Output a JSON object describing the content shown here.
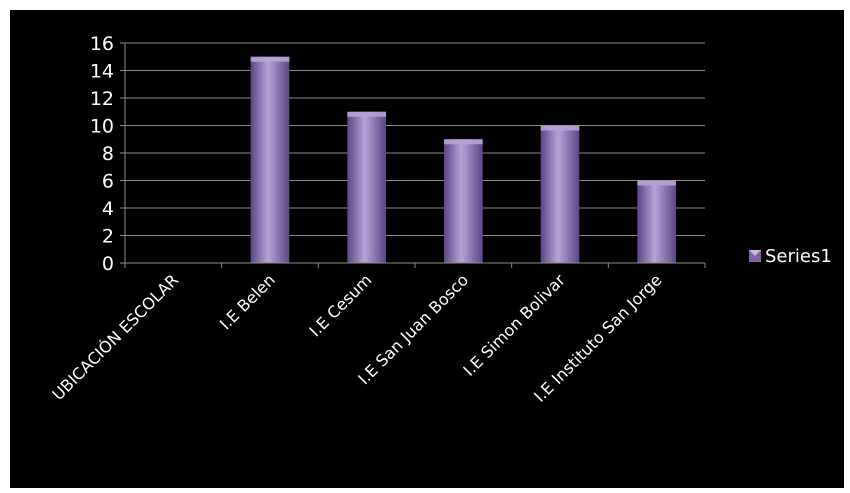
{
  "chart_data": {
    "type": "bar",
    "categories": [
      "UBICACIÓN ESCOLAR",
      "I.E Belen",
      "I.E Cesum",
      "I.E San Juan Bosco",
      "I.E Simon Bolivar",
      "I.E  Instituto San Jorge"
    ],
    "series": [
      {
        "name": "Series1",
        "values": [
          0,
          15,
          11,
          9,
          10,
          6
        ]
      }
    ],
    "yticks": [
      "0",
      "2",
      "4",
      "6",
      "8",
      "10",
      "12",
      "14",
      "16"
    ],
    "ylim": [
      0,
      16
    ],
    "grid": true,
    "legend": "right",
    "title": "",
    "xlabel": "",
    "ylabel": "",
    "colors": {
      "background": "#000000",
      "bar": "#8064a2",
      "bar_light": "#b7a2d6",
      "bar_dark": "#5e4585",
      "gridline": "#8c8c8c",
      "text": "#ffffff"
    }
  }
}
